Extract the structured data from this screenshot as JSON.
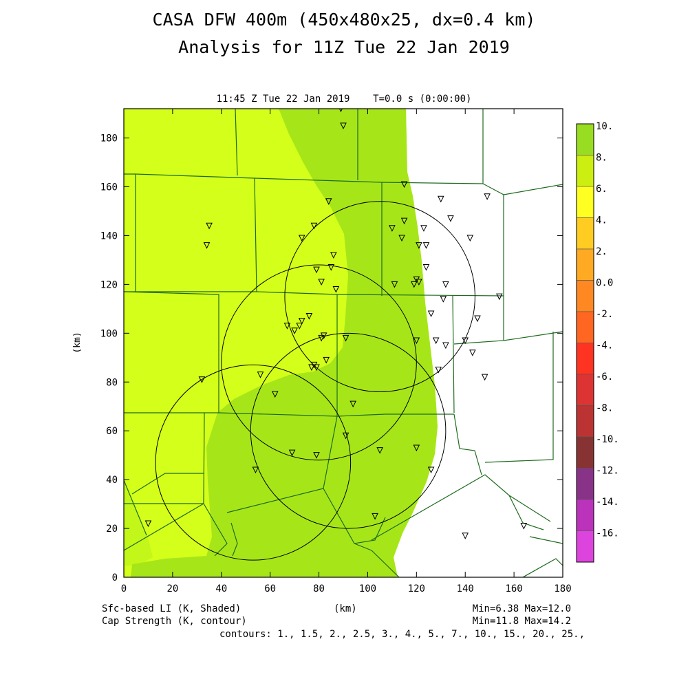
{
  "title_line1": "CASA DFW 400m (450x480x25, dx=0.4 km)",
  "title_line2": "Analysis for 11Z Tue 22 Jan 2019",
  "subtitle": "11:45 Z Tue 22 Jan 2019    T=0.0 s (0:00:00)",
  "footer": {
    "left_line1": "Sfc-based LI (K, Shaded)",
    "left_line2": "Cap Strength (K, contour)",
    "x_unit": "(km)",
    "right_line1": "Min=6.38 Max=12.0",
    "right_line2": "Min=11.8 Max=14.2",
    "contours": "contours: 1., 1.5, 2., 2.5, 3., 4., 5., 7., 10., 15., 20., 25.,"
  },
  "axes": {
    "xlabel": "(km)",
    "ylabel": "(km)",
    "x_ticks": [
      "0",
      "20",
      "40",
      "60",
      "80",
      "100",
      "120",
      "140",
      "160",
      "180"
    ],
    "y_ticks": [
      "0",
      "20",
      "40",
      "60",
      "80",
      "100",
      "120",
      "140",
      "160",
      "180"
    ],
    "xlim": [
      0,
      180
    ],
    "ylim": [
      0,
      192
    ]
  },
  "colorbar": {
    "labels": [
      "10.",
      "8.",
      "6.",
      "4.",
      "2.",
      "0.0",
      "-2.",
      "-4.",
      "-6.",
      "-8.",
      "-10.",
      "-12.",
      "-14.",
      "-16."
    ],
    "colors": [
      "#99dd22",
      "#ccee11",
      "#ffff22",
      "#ffcc22",
      "#ffaa22",
      "#ff8822",
      "#ff6622",
      "#ff3322",
      "#dd3333",
      "#bb3333",
      "#883333",
      "#883388",
      "#bb33bb",
      "#dd44dd"
    ]
  },
  "map_colors": {
    "band_8_10_a": "#d4ff1a",
    "band_8_10_b": "#c3f71a",
    "band_10_12": "#a6e619",
    "boundary": "#1e6b1e"
  },
  "radar_rings_km": [
    {
      "cx": 105,
      "cy": 115,
      "r": 39
    },
    {
      "cx": 80,
      "cy": 88,
      "r": 40
    },
    {
      "cx": 92,
      "cy": 60,
      "r": 40
    },
    {
      "cx": 53,
      "cy": 47,
      "r": 40
    }
  ],
  "stations_km": [
    [
      89,
      192
    ],
    [
      90,
      185
    ],
    [
      115,
      161
    ],
    [
      149,
      156
    ],
    [
      130,
      155
    ],
    [
      84,
      154
    ],
    [
      115,
      146
    ],
    [
      134,
      147
    ],
    [
      110,
      143
    ],
    [
      35,
      144
    ],
    [
      78,
      144
    ],
    [
      123,
      143
    ],
    [
      73,
      139
    ],
    [
      114,
      139
    ],
    [
      142,
      139
    ],
    [
      34,
      136
    ],
    [
      121,
      136
    ],
    [
      124,
      136
    ],
    [
      86,
      132
    ],
    [
      85,
      127
    ],
    [
      79,
      126
    ],
    [
      124,
      127
    ],
    [
      120,
      122
    ],
    [
      81,
      121
    ],
    [
      119,
      120
    ],
    [
      111,
      120
    ],
    [
      121,
      121
    ],
    [
      132,
      120
    ],
    [
      87,
      118
    ],
    [
      154,
      115
    ],
    [
      131,
      114
    ],
    [
      126,
      108
    ],
    [
      145,
      106
    ],
    [
      73,
      105
    ],
    [
      72,
      103
    ],
    [
      67,
      103
    ],
    [
      76,
      107
    ],
    [
      70,
      101
    ],
    [
      82,
      99
    ],
    [
      81,
      98
    ],
    [
      91,
      98
    ],
    [
      128,
      97
    ],
    [
      120,
      97
    ],
    [
      140,
      97
    ],
    [
      132,
      95
    ],
    [
      143,
      92
    ],
    [
      83,
      89
    ],
    [
      78,
      87
    ],
    [
      79,
      86
    ],
    [
      77,
      86
    ],
    [
      129,
      85
    ],
    [
      148,
      82
    ],
    [
      56,
      83
    ],
    [
      32,
      81
    ],
    [
      62,
      75
    ],
    [
      94,
      71
    ],
    [
      91,
      58
    ],
    [
      120,
      53
    ],
    [
      105,
      52
    ],
    [
      69,
      51
    ],
    [
      79,
      50
    ],
    [
      54,
      44
    ],
    [
      126,
      44
    ],
    [
      103,
      25
    ],
    [
      10,
      22
    ],
    [
      164,
      21
    ],
    [
      140,
      17
    ]
  ]
}
